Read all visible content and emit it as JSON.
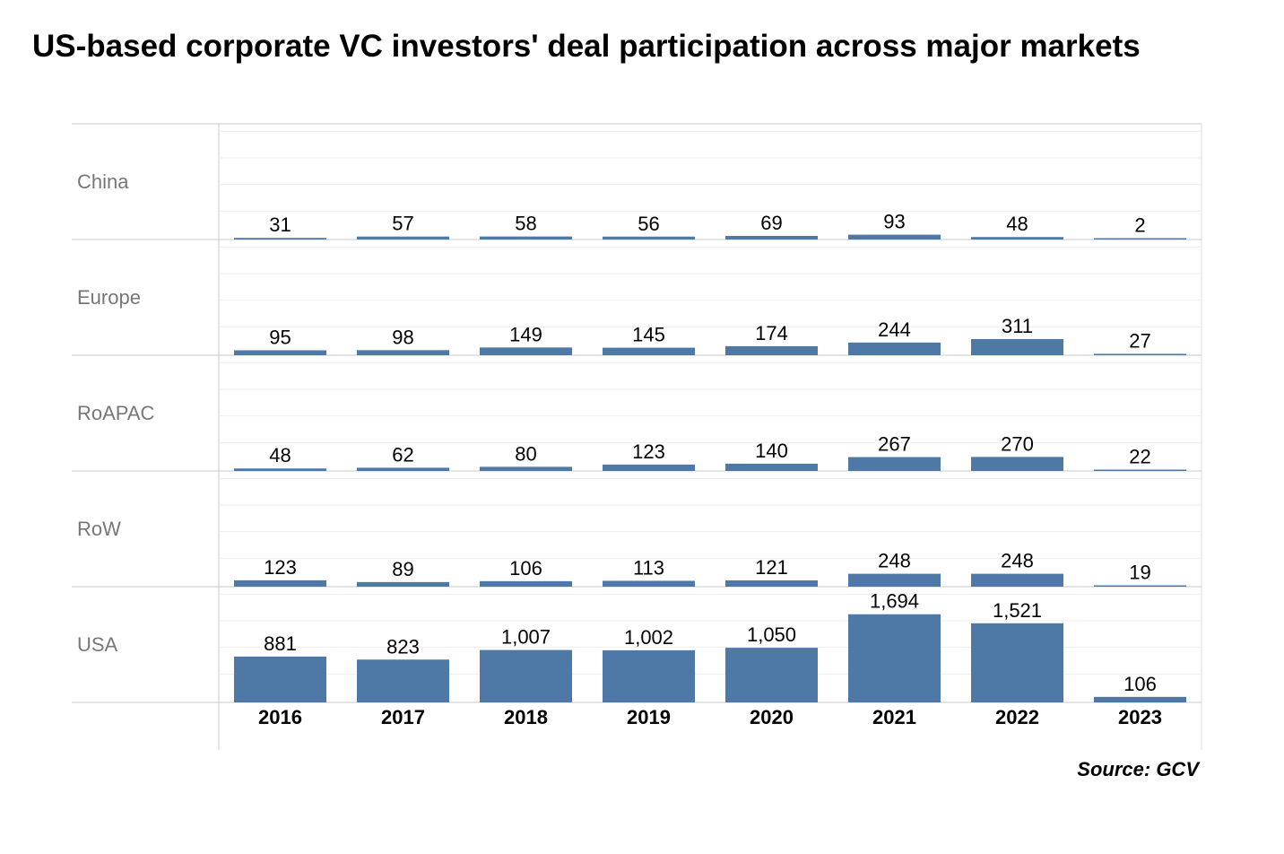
{
  "title": "US-based corporate VC investors' deal participation across major markets",
  "source": "Source: GCV",
  "chart_data": {
    "type": "bar",
    "title": "US-based corporate VC investors' deal participation across major markets",
    "layout": "small-multiples",
    "categories": [
      "2016",
      "2017",
      "2018",
      "2019",
      "2020",
      "2021",
      "2022",
      "2023"
    ],
    "series": [
      {
        "name": "China",
        "values": [
          31,
          57,
          58,
          56,
          69,
          93,
          48,
          2
        ],
        "labels": [
          "31",
          "57",
          "58",
          "56",
          "69",
          "93",
          "48",
          "2"
        ]
      },
      {
        "name": "Europe",
        "values": [
          95,
          98,
          149,
          145,
          174,
          244,
          311,
          27
        ],
        "labels": [
          "95",
          "98",
          "149",
          "145",
          "174",
          "244",
          "311",
          "27"
        ]
      },
      {
        "name": "RoAPAC",
        "values": [
          48,
          62,
          80,
          123,
          140,
          267,
          270,
          22
        ],
        "labels": [
          "48",
          "62",
          "80",
          "123",
          "140",
          "267",
          "270",
          "22"
        ]
      },
      {
        "name": "RoW",
        "values": [
          123,
          89,
          106,
          113,
          121,
          248,
          248,
          19
        ],
        "labels": [
          "123",
          "89",
          "106",
          "113",
          "121",
          "248",
          "248",
          "19"
        ]
      },
      {
        "name": "USA",
        "values": [
          881,
          823,
          1007,
          1002,
          1050,
          1694,
          1521,
          106
        ],
        "labels": [
          "881",
          "823",
          "1,007",
          "1,002",
          "1,050",
          "1,694",
          "1,521",
          "106"
        ]
      }
    ],
    "ylim": [
      0,
      2000
    ],
    "bar_color": "#4e79a7",
    "grid": true,
    "legend": "none"
  }
}
